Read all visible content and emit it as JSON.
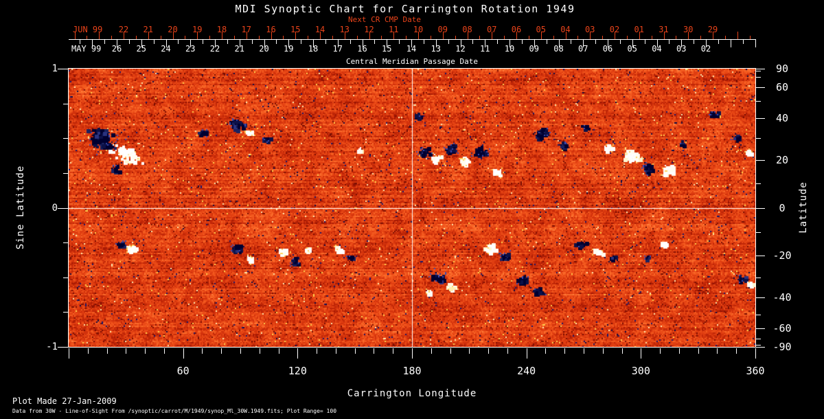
{
  "title": "MDI Synoptic Chart for Carrington Rotation 1949",
  "top_axis": {
    "label": "Next CR CMP Date",
    "month_label": "JUN 99",
    "dates": [
      "22",
      "21",
      "20",
      "19",
      "18",
      "17",
      "16",
      "15",
      "14",
      "13",
      "12",
      "11",
      "10",
      "09",
      "08",
      "07",
      "06",
      "05",
      "04",
      "03",
      "02",
      "01",
      "31",
      "30",
      "29"
    ]
  },
  "cmp_axis": {
    "label": "Central Meridian Passage Date",
    "month_label": "MAY 99",
    "dates": [
      "26",
      "25",
      "24",
      "23",
      "22",
      "21",
      "20",
      "19",
      "18",
      "17",
      "16",
      "15",
      "14",
      "13",
      "12",
      "11",
      "10",
      "09",
      "08",
      "07",
      "06",
      "05",
      "04",
      "03",
      "02"
    ]
  },
  "left_axis": {
    "label": "Sine Latitude",
    "ticks": [
      "1",
      "0",
      "-1"
    ],
    "tick_values": [
      1,
      0,
      -1
    ],
    "minor_tick_values": [
      0.75,
      0.5,
      0.25,
      -0.25,
      -0.5,
      -0.75
    ]
  },
  "right_axis": {
    "label": "Latitude",
    "ticks": [
      "90",
      "60",
      "40",
      "20",
      "0",
      "-20",
      "-40",
      "-60",
      "-90"
    ],
    "tick_values": [
      90,
      60,
      40,
      20,
      0,
      -20,
      -40,
      -60,
      -90
    ],
    "minor_tick_values": [
      80,
      70,
      50,
      30,
      10,
      -10,
      -30,
      -50,
      -70,
      -80
    ]
  },
  "bottom_axis": {
    "label": "Carrington Longitude",
    "ticks": [
      "60",
      "120",
      "180",
      "240",
      "300",
      "360"
    ],
    "tick_values": [
      60,
      120,
      180,
      240,
      300,
      360
    ]
  },
  "footer": {
    "line1": "Plot Made 27-Jan-2009",
    "line2": "Data from 30W - Line-of-Sight From /synoptic/carrot/M/1949/synop_Ml_30W.1949.fits; Plot Range=  100"
  },
  "colors": {
    "background": "#000000",
    "axis_text": "#ffffff",
    "red_axis": "#e8431a",
    "crosshair": "#ffffff",
    "map_palette": [
      "#8f1102",
      "#a81a04",
      "#bf2607",
      "#d2320c",
      "#e03e11",
      "#ea4b17",
      "#f35a1f",
      "#fa6a2a",
      "#ff7d39"
    ],
    "negative_polarity": [
      "#000030",
      "#0c1148",
      "#1a2260",
      "#2a3380"
    ],
    "positive_polarity": [
      "#ffffff",
      "#fffdf0",
      "#fff7d0",
      "#ffedae"
    ],
    "negative_fringe": "#3a4cb4",
    "positive_fringe": "#ffcf5a",
    "navy_speck": [
      "#0a0a46",
      "#16166e"
    ],
    "light_speck": [
      "#ffd24e",
      "#ffeab0"
    ],
    "dark_speck": "#7a0e02"
  },
  "chart_data": {
    "type": "heatmap",
    "title": "MDI Synoptic Chart for Carrington Rotation 1949",
    "xlabel": "Carrington Longitude",
    "ylabel_left": "Sine Latitude",
    "ylabel_right": "Latitude",
    "x_range": [
      0,
      360
    ],
    "x_ticks": [
      60,
      120,
      180,
      240,
      300,
      360
    ],
    "sine_latitude_range": [
      -1,
      1
    ],
    "latitude_ticks": [
      90,
      60,
      40,
      20,
      0,
      -20,
      -40,
      -60,
      -90
    ],
    "top_axis_dates_jun99": [
      "22",
      "21",
      "20",
      "19",
      "18",
      "17",
      "16",
      "15",
      "14",
      "13",
      "12",
      "11",
      "10",
      "09",
      "08",
      "07",
      "06",
      "05",
      "04",
      "03",
      "02",
      "01",
      "31",
      "30",
      "29"
    ],
    "cmp_dates_may99": [
      "26",
      "25",
      "24",
      "23",
      "22",
      "21",
      "20",
      "19",
      "18",
      "17",
      "16",
      "15",
      "14",
      "13",
      "12",
      "11",
      "10",
      "09",
      "08",
      "07",
      "06",
      "05",
      "04",
      "03",
      "02"
    ],
    "plot_range_gauss": 100,
    "reference_lines": {
      "vertical_lon": 180,
      "horizontal_lat": 0
    },
    "colormap_meaning": "orange-red noise = weak field; dark blue/black = negative polarity; white/yellow = positive polarity",
    "active_regions": [
      {
        "lon": 17,
        "lat": 30,
        "pol": "-",
        "rx": 26,
        "ry": 18,
        "a": 0.6,
        "n": 100
      },
      {
        "lon": 30,
        "lat": 23,
        "pol": "+",
        "rx": 28,
        "ry": 14,
        "a": 0.6,
        "n": 90
      },
      {
        "lon": 24,
        "lat": 17,
        "pol": "-",
        "rx": 10,
        "ry": 7,
        "n": 22
      },
      {
        "lon": 70,
        "lat": 33,
        "pol": "-",
        "rx": 8,
        "ry": 6,
        "n": 16
      },
      {
        "lon": 88,
        "lat": 37,
        "pol": "-",
        "rx": 15,
        "ry": 9,
        "a": 0.2,
        "n": 55
      },
      {
        "lon": 94,
        "lat": 33,
        "pol": "+",
        "rx": 7,
        "ry": 5,
        "n": 18
      },
      {
        "lon": 103,
        "lat": 30,
        "pol": "-",
        "rx": 8,
        "ry": 5,
        "n": 13
      },
      {
        "lon": 152,
        "lat": 25,
        "pol": "+",
        "rx": 5,
        "ry": 4,
        "n": 8
      },
      {
        "lon": 183,
        "lat": 42,
        "pol": "-",
        "rx": 8,
        "ry": 4,
        "n": 12
      },
      {
        "lon": 186,
        "lat": 24,
        "pol": "-",
        "rx": 10,
        "ry": 8,
        "n": 28
      },
      {
        "lon": 192,
        "lat": 21,
        "pol": "+",
        "rx": 9,
        "ry": 8,
        "n": 32
      },
      {
        "lon": 200,
        "lat": 25,
        "pol": "-",
        "rx": 12,
        "ry": 9,
        "n": 38
      },
      {
        "lon": 207,
        "lat": 20,
        "pol": "+",
        "rx": 8,
        "ry": 7,
        "n": 26
      },
      {
        "lon": 215,
        "lat": 24,
        "pol": "-",
        "rx": 12,
        "ry": 10,
        "n": 42
      },
      {
        "lon": 224,
        "lat": 15,
        "pol": "+",
        "rx": 8,
        "ry": 6,
        "n": 18
      },
      {
        "lon": 247,
        "lat": 33,
        "pol": "-",
        "rx": 15,
        "ry": 9,
        "a": -0.3,
        "n": 45
      },
      {
        "lon": 259,
        "lat": 27,
        "pol": "-",
        "rx": 9,
        "ry": 7,
        "n": 20
      },
      {
        "lon": 270,
        "lat": 36,
        "pol": "-",
        "rx": 7,
        "ry": 4,
        "n": 10
      },
      {
        "lon": 283,
        "lat": 26,
        "pol": "+",
        "rx": 8,
        "ry": 7,
        "n": 22
      },
      {
        "lon": 295,
        "lat": 22,
        "pol": "+",
        "rx": 13,
        "ry": 10,
        "n": 48
      },
      {
        "lon": 304,
        "lat": 17,
        "pol": "-",
        "rx": 10,
        "ry": 9,
        "n": 32
      },
      {
        "lon": 314,
        "lat": 16,
        "pol": "+",
        "rx": 11,
        "ry": 9,
        "n": 40
      },
      {
        "lon": 322,
        "lat": 28,
        "pol": "-",
        "rx": 7,
        "ry": 5,
        "n": 12
      },
      {
        "lon": 337,
        "lat": 43,
        "pol": "-",
        "rx": 9,
        "ry": 5,
        "n": 14
      },
      {
        "lon": 350,
        "lat": 31,
        "pol": "-",
        "rx": 8,
        "ry": 6,
        "n": 14
      },
      {
        "lon": 356,
        "lat": 24,
        "pol": "+",
        "rx": 7,
        "ry": 6,
        "n": 16
      },
      {
        "lon": 26,
        "lat": -15,
        "pol": "-",
        "rx": 8,
        "ry": 6,
        "n": 16
      },
      {
        "lon": 33,
        "lat": -17,
        "pol": "+",
        "rx": 9,
        "ry": 7,
        "n": 26
      },
      {
        "lon": 88,
        "lat": -17,
        "pol": "-",
        "rx": 9,
        "ry": 7,
        "n": 24
      },
      {
        "lon": 94,
        "lat": -21,
        "pol": "+",
        "rx": 6,
        "ry": 5,
        "n": 13
      },
      {
        "lon": 112,
        "lat": -18,
        "pol": "+",
        "rx": 9,
        "ry": 7,
        "n": 24
      },
      {
        "lon": 118,
        "lat": -22,
        "pol": "-",
        "rx": 9,
        "ry": 7,
        "n": 20
      },
      {
        "lon": 125,
        "lat": -17,
        "pol": "+",
        "rx": 7,
        "ry": 5,
        "n": 14
      },
      {
        "lon": 141,
        "lat": -17,
        "pol": "+",
        "rx": 8,
        "ry": 6,
        "n": 18
      },
      {
        "lon": 147,
        "lat": -21,
        "pol": "-",
        "rx": 5,
        "ry": 4,
        "n": 8
      },
      {
        "lon": 193,
        "lat": -30,
        "pol": "-",
        "rx": 13,
        "ry": 10,
        "n": 48
      },
      {
        "lon": 200,
        "lat": -34,
        "pol": "+",
        "rx": 9,
        "ry": 7,
        "n": 22
      },
      {
        "lon": 188,
        "lat": -37,
        "pol": "+",
        "rx": 6,
        "ry": 4,
        "n": 9
      },
      {
        "lon": 221,
        "lat": -16,
        "pol": "+",
        "rx": 11,
        "ry": 9,
        "n": 36
      },
      {
        "lon": 228,
        "lat": -20,
        "pol": "-",
        "rx": 10,
        "ry": 8,
        "n": 28
      },
      {
        "lon": 237,
        "lat": -31,
        "pol": "-",
        "rx": 10,
        "ry": 8,
        "n": 26
      },
      {
        "lon": 246,
        "lat": -36,
        "pol": "-",
        "rx": 9,
        "ry": 7,
        "n": 18
      },
      {
        "lon": 268,
        "lat": -15,
        "pol": "-",
        "rx": 9,
        "ry": 6,
        "n": 18
      },
      {
        "lon": 277,
        "lat": -18,
        "pol": "+",
        "rx": 8,
        "ry": 6,
        "n": 20
      },
      {
        "lon": 285,
        "lat": -21,
        "pol": "-",
        "rx": 8,
        "ry": 6,
        "n": 16
      },
      {
        "lon": 303,
        "lat": -21,
        "pol": "-",
        "rx": 6,
        "ry": 4,
        "n": 10
      },
      {
        "lon": 312,
        "lat": -15,
        "pol": "+",
        "rx": 6,
        "ry": 5,
        "n": 12
      },
      {
        "lon": 352,
        "lat": -30,
        "pol": "-",
        "rx": 9,
        "ry": 7,
        "n": 20
      },
      {
        "lon": 357,
        "lat": -33,
        "pol": "+",
        "rx": 7,
        "ry": 6,
        "n": 16
      }
    ]
  }
}
